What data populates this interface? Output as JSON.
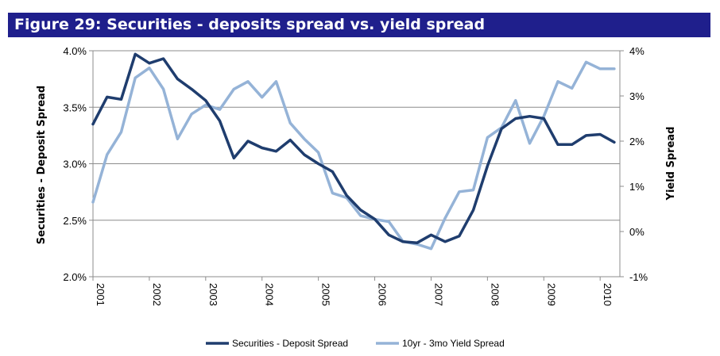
{
  "figure": {
    "title": "Figure 29: Securities - deposits spread vs. yield spread"
  },
  "colors": {
    "title_bar": "#1f1f8c",
    "series_dark": "#1f3d6e",
    "series_light": "#95b3d7",
    "grid": "#8c8c8c"
  },
  "chart_data": {
    "type": "line",
    "title": "Figure 29: Securities - deposits spread vs. yield spread",
    "xlabel": "",
    "ylabel_left": "Securities - Deposit Spread",
    "ylabel_right": "Yield Spread",
    "x_ticks": [
      "2001",
      "2002",
      "2003",
      "2004",
      "2005",
      "2006",
      "2007",
      "2008",
      "2009",
      "2010"
    ],
    "xlim": [
      2001.0,
      2010.35
    ],
    "ylim_left": [
      2.0,
      4.0
    ],
    "ylim_right": [
      -1,
      4
    ],
    "y_ticks_left": [
      "2.0%",
      "2.5%",
      "3.0%",
      "3.5%",
      "4.0%"
    ],
    "y_ticks_right": [
      "-1%",
      "0%",
      "1%",
      "2%",
      "3%",
      "4%"
    ],
    "grid": "horizontal",
    "legend_position": "bottom",
    "series": [
      {
        "name": "Securities - Deposit Spread",
        "axis": "left",
        "color": "#1f3d6e",
        "x": [
          2001.0,
          2001.25,
          2001.5,
          2001.75,
          2002.0,
          2002.25,
          2002.5,
          2002.75,
          2003.0,
          2003.25,
          2003.5,
          2003.75,
          2004.0,
          2004.25,
          2004.5,
          2004.75,
          2005.0,
          2005.25,
          2005.5,
          2005.75,
          2006.0,
          2006.25,
          2006.5,
          2006.75,
          2007.0,
          2007.25,
          2007.5,
          2007.75,
          2008.0,
          2008.25,
          2008.5,
          2008.75,
          2009.0,
          2009.25,
          2009.5,
          2009.75,
          2010.0,
          2010.25
        ],
        "values": [
          3.35,
          3.59,
          3.57,
          3.97,
          3.89,
          3.93,
          3.75,
          3.66,
          3.56,
          3.38,
          3.05,
          3.2,
          3.14,
          3.11,
          3.21,
          3.08,
          3.0,
          2.93,
          2.72,
          2.59,
          2.51,
          2.37,
          2.31,
          2.3,
          2.37,
          2.31,
          2.36,
          2.59,
          2.98,
          3.31,
          3.4,
          3.42,
          3.4,
          3.17,
          3.17,
          3.25,
          3.26,
          3.19
        ]
      },
      {
        "name": "10yr - 3mo Yield Spread",
        "axis": "right",
        "color": "#95b3d7",
        "x": [
          2001.0,
          2001.25,
          2001.5,
          2001.75,
          2002.0,
          2002.25,
          2002.5,
          2002.75,
          2003.0,
          2003.25,
          2003.5,
          2003.75,
          2004.0,
          2004.25,
          2004.5,
          2004.75,
          2005.0,
          2005.25,
          2005.5,
          2005.75,
          2006.0,
          2006.25,
          2006.5,
          2006.75,
          2007.0,
          2007.25,
          2007.5,
          2007.75,
          2008.0,
          2008.25,
          2008.5,
          2008.75,
          2009.0,
          2009.25,
          2009.5,
          2009.75,
          2010.0,
          2010.25
        ],
        "values": [
          0.65,
          1.7,
          2.2,
          3.4,
          3.62,
          3.15,
          2.05,
          2.6,
          2.8,
          2.7,
          3.15,
          3.32,
          2.97,
          3.32,
          2.4,
          2.05,
          1.75,
          0.85,
          0.75,
          0.35,
          0.27,
          0.22,
          -0.22,
          -0.28,
          -0.38,
          0.3,
          0.88,
          0.92,
          2.08,
          2.3,
          2.9,
          1.95,
          2.55,
          3.32,
          3.17,
          3.75,
          3.6,
          3.6
        ]
      }
    ]
  }
}
